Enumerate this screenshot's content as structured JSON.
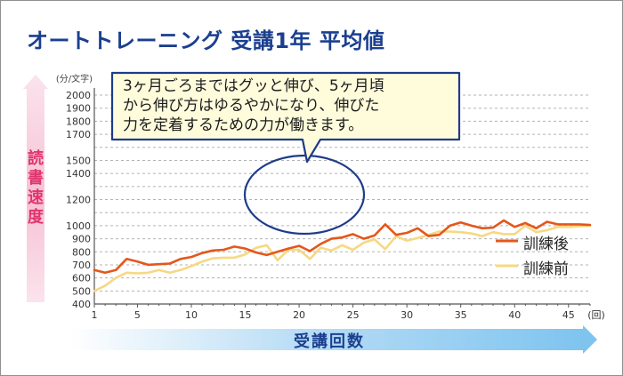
{
  "header": {
    "title": "オートトレーニング 受講1年 平均値"
  },
  "callout": {
    "lines": [
      "3ヶ月ごろまではグッと伸び、5ヶ月頃",
      "から伸び方はゆるやかになり、伸びた",
      "力を定着するための力が働きます。"
    ]
  },
  "colors": {
    "after": "#e4571c",
    "before": "#f7d882",
    "axis_title": "#1b3f8f",
    "y_title": "#e0356e",
    "callout_border": "#1e3c8a",
    "callout_fill": "#fffcdc"
  },
  "chart_data": {
    "type": "line",
    "title": "オートトレーニング 受講1年 平均値",
    "xlabel": "受講回数",
    "ylabel": "読書速度",
    "y_unit": "(分/文字)",
    "x_unit": "(回)",
    "xlim": [
      1,
      47
    ],
    "ylim": [
      400,
      2000
    ],
    "x_ticks": [
      1,
      5,
      10,
      15,
      20,
      25,
      30,
      35,
      40,
      45
    ],
    "y_ticks": [
      400,
      500,
      600,
      700,
      800,
      900,
      1000,
      1100,
      1200,
      1300,
      1400,
      1500,
      1600,
      1700,
      1800,
      1900,
      2000
    ],
    "y_tick_labels": [
      "400",
      "500",
      "600",
      "700",
      "800",
      "900",
      "1000",
      "",
      "1200",
      "",
      "1400",
      "1500",
      "",
      "1700",
      "1800",
      "1900",
      "2000"
    ],
    "x": [
      1,
      2,
      3,
      4,
      5,
      6,
      7,
      8,
      9,
      10,
      11,
      12,
      13,
      14,
      15,
      16,
      17,
      18,
      19,
      20,
      21,
      22,
      23,
      24,
      25,
      26,
      27,
      28,
      29,
      30,
      31,
      32,
      33,
      34,
      35,
      36,
      37,
      38,
      39,
      40,
      41,
      42,
      43,
      44,
      45,
      46,
      47
    ],
    "series": [
      {
        "name": "訓練後",
        "values": [
          660,
          640,
          660,
          745,
          725,
          700,
          705,
          710,
          745,
          760,
          790,
          810,
          815,
          840,
          825,
          795,
          775,
          800,
          825,
          845,
          805,
          860,
          900,
          910,
          935,
          900,
          925,
          1010,
          930,
          945,
          980,
          920,
          930,
          1000,
          1025,
          1000,
          980,
          985,
          1040,
          990,
          1020,
          980,
          1030,
          1010,
          1010,
          1010,
          1005
        ]
      },
      {
        "name": "訓練前",
        "values": [
          500,
          540,
          600,
          640,
          635,
          640,
          660,
          640,
          660,
          690,
          725,
          750,
          755,
          755,
          780,
          830,
          850,
          735,
          815,
          815,
          745,
          830,
          810,
          850,
          815,
          870,
          895,
          820,
          920,
          885,
          905,
          930,
          955,
          955,
          950,
          940,
          920,
          950,
          935,
          935,
          1000,
          950,
          965,
          990,
          990,
          995,
          1000
        ]
      }
    ],
    "legend": [
      "訓練後",
      "訓練前"
    ],
    "legend_position": "bottom-right",
    "annotation": {
      "text": "3ヶ月ごろまではグッと伸び、5ヶ月頃から伸び方はゆるやかになり、伸びた力を定着するための力が働きます。",
      "highlight_x_range": [
        16,
        25
      ]
    },
    "grid": true
  }
}
